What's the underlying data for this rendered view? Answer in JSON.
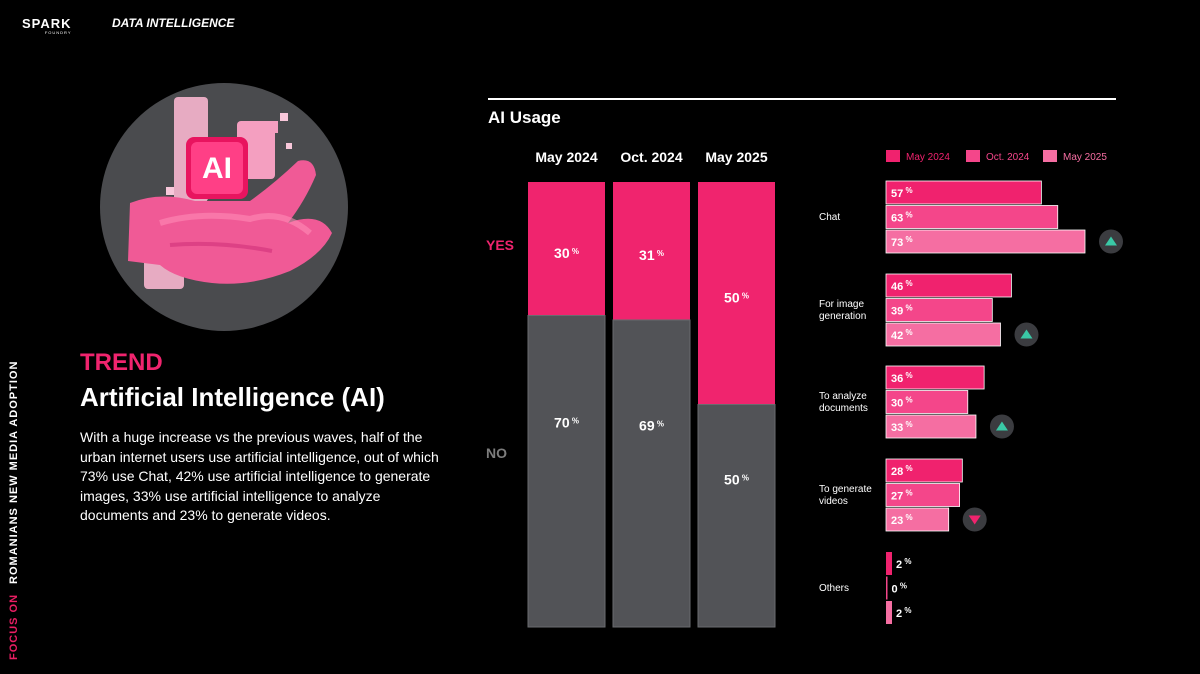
{
  "header": {
    "logo_primary": "SPARK",
    "logo_primary_sub": "FOUNDRY",
    "logo_secondary": "DATA INTELLIGENCE"
  },
  "side_label": {
    "focus": "FOCUS ON",
    "title": "ROMANIANS NEW MEDIA ADOPTION"
  },
  "hero": {
    "badge_text": "AI"
  },
  "trend": {
    "label": "TREND",
    "title": "Artificial Intelligence (AI)",
    "body": "With a huge increase vs the previous waves, half of the urban internet users use artificial intelligence, out of which 73% use Chat, 42% use artificial intelligence to generate images, 33% use artificial intelligence to analyze documents and 23% to generate videos."
  },
  "colors": {
    "accent": "#f0246e",
    "no_bar": "#525357",
    "may2024": "#f0226e",
    "oct2024": "#f4468a",
    "may2025": "#f56ea2",
    "trend_up": "#3ac9a6",
    "trend_down": "#f0246e"
  },
  "chart_data": [
    {
      "type": "bar",
      "stacked": true,
      "title": "AI Usage",
      "categories": [
        "May 2024",
        "Oct. 2024",
        "May 2025"
      ],
      "series": [
        {
          "name": "YES",
          "values": [
            30,
            31,
            50
          ]
        },
        {
          "name": "NO",
          "values": [
            70,
            69,
            50
          ]
        }
      ],
      "unit": "%",
      "ylim": [
        0,
        100
      ]
    },
    {
      "type": "bar",
      "orientation": "horizontal",
      "legend": [
        "May 2024",
        "Oct. 2024",
        "May 2025"
      ],
      "legend_position": "top-right",
      "unit": "%",
      "xlim": [
        0,
        73
      ],
      "groups": [
        {
          "label": "Chat",
          "values": [
            57,
            63,
            73
          ],
          "trend": "up"
        },
        {
          "label": "For image generation",
          "values": [
            46,
            39,
            42
          ],
          "trend": "up"
        },
        {
          "label": "To analyze documents",
          "values": [
            36,
            30,
            33
          ],
          "trend": "up"
        },
        {
          "label": "To generate videos",
          "values": [
            28,
            27,
            23
          ],
          "trend": "down"
        },
        {
          "label": "Others",
          "values": [
            2,
            0,
            2
          ],
          "trend": null
        }
      ]
    }
  ]
}
